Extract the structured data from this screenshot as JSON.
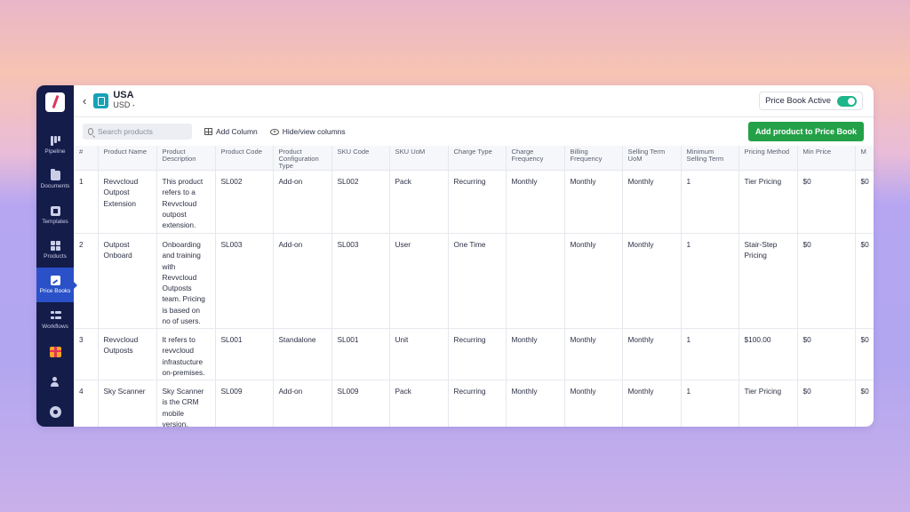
{
  "sidebar": {
    "items": [
      {
        "label": "Pipeline",
        "icon": "pipeline-icon"
      },
      {
        "label": "Documents",
        "icon": "documents-icon"
      },
      {
        "label": "Templates",
        "icon": "templates-icon"
      },
      {
        "label": "Products",
        "icon": "products-icon"
      },
      {
        "label": "Price Books",
        "icon": "price-books-icon",
        "active": true
      },
      {
        "label": "Workflows",
        "icon": "workflows-icon"
      }
    ],
    "bottom_icons": [
      "gift-icon",
      "user-add-icon",
      "settings-flower-icon"
    ]
  },
  "header": {
    "title": "USA",
    "currency": "USD",
    "active_label": "Price Book Active",
    "active_on": true
  },
  "toolbar": {
    "search_placeholder": "Search products",
    "add_column_label": "Add Column",
    "hide_view_label": "Hide/view columns",
    "add_product_label": "Add product to Price Book"
  },
  "table": {
    "columns": [
      "#",
      "Product Name",
      "Product Description",
      "Product Code",
      "Product Configuration Type",
      "SKU Code",
      "SKU UoM",
      "Charge Type",
      "Charge Frequency",
      "Billing Frequency",
      "Selling Term UoM",
      "Minimum Selling Term",
      "Pricing Method",
      "Min Price",
      "M"
    ],
    "rows": [
      [
        "1",
        "Revvcloud Outpost Extension",
        "This product refers to a Revvcloud outpost extension.",
        "SL002",
        "Add-on",
        "SL002",
        "Pack",
        "Recurring",
        "Monthly",
        "Monthly",
        "Monthly",
        "1",
        "Tier Pricing",
        "$0",
        "$0"
      ],
      [
        "2",
        "Outpost Onboard",
        "Onboarding and training with Revvcloud Outposts team. Pricing is based on no of users.",
        "SL003",
        "Add-on",
        "SL003",
        "User",
        "One Time",
        "",
        "Monthly",
        "Monthly",
        "1",
        "Stair-Step Pricing",
        "$0",
        "$0"
      ],
      [
        "3",
        "Revvcloud Outposts",
        "It refers to revvcloud infrastucture on-premises.",
        "SL001",
        "Standalone",
        "SL001",
        "Unit",
        "Recurring",
        "Monthly",
        "Monthly",
        "Monthly",
        "1",
        "$100.00",
        "$0",
        "$0"
      ],
      [
        "4",
        "Sky Scanner",
        "Sky Scanner is the CRM mobile version.",
        "SL009",
        "Add-on",
        "SL009",
        "Pack",
        "Recurring",
        "Monthly",
        "Monthly",
        "Monthly",
        "1",
        "Tier Pricing",
        "$0",
        "$0"
      ]
    ]
  }
}
